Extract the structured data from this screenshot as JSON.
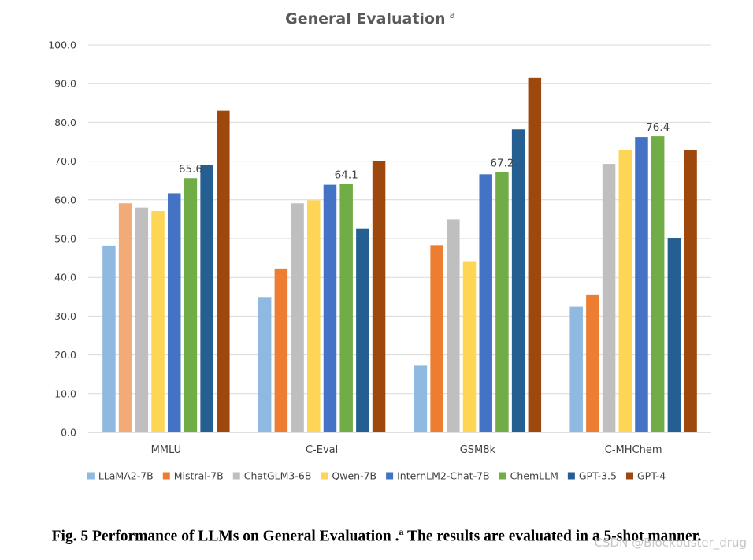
{
  "chart_data": {
    "type": "bar",
    "title": "General Evaluation",
    "title_superscript": "a",
    "categories": [
      "MMLU",
      "C-Eval",
      "GSM8k",
      "C-MHChem"
    ],
    "ylim": [
      0,
      100
    ],
    "yticks": [
      "0.0",
      "10.0",
      "20.0",
      "30.0",
      "40.0",
      "50.0",
      "60.0",
      "70.0",
      "80.0",
      "90.0",
      "100.0"
    ],
    "ytick_values": [
      0,
      10,
      20,
      30,
      40,
      50,
      60,
      70,
      80,
      90,
      100
    ],
    "grid": true,
    "legend_position": "bottom",
    "series": [
      {
        "name": "LLaMA2-7B",
        "color": "#8fb9e1",
        "values": [
          48.2,
          34.9,
          17.2,
          32.4
        ]
      },
      {
        "name": "Mistral-7B",
        "color": "#ed7d31",
        "values": [
          59.1,
          42.3,
          48.3,
          35.6
        ]
      },
      {
        "name": "ChatGLM3-6B",
        "color": "#bfbfbf",
        "values": [
          58.0,
          59.1,
          55.0,
          69.3
        ]
      },
      {
        "name": "Qwen-7B",
        "color": "#ffd555",
        "values": [
          57.1,
          59.9,
          44.0,
          72.8
        ]
      },
      {
        "name": "InternLM2-Chat-7B",
        "color": "#4472c4",
        "values": [
          61.7,
          63.9,
          66.6,
          76.2
        ]
      },
      {
        "name": "ChemLLM",
        "color": "#70ad47",
        "values": [
          65.6,
          64.1,
          67.2,
          76.4
        ]
      },
      {
        "name": "GPT-3.5",
        "color": "#255e91",
        "values": [
          69.1,
          52.5,
          78.2,
          50.2
        ]
      },
      {
        "name": "GPT-4",
        "color": "#9e480e",
        "values": [
          83.0,
          70.0,
          91.5,
          72.8
        ]
      }
    ],
    "bar_color_overrides": [
      {
        "series": 1,
        "category": 0,
        "color": "#f2aa77"
      }
    ],
    "data_labels": [
      {
        "series": 5,
        "category": 0,
        "text": "65.6"
      },
      {
        "series": 5,
        "category": 1,
        "text": "64.1"
      },
      {
        "series": 5,
        "category": 2,
        "text": "67.2"
      },
      {
        "series": 5,
        "category": 3,
        "text": "76.4"
      }
    ]
  },
  "caption": {
    "text": "Fig. 5 Performance of LLMs on General Evaluation .",
    "superscript": "a",
    "text_after": " The results are evaluated in a 5-shot manner."
  },
  "watermark": "CSDN @Blockbuster_drug",
  "colors": {
    "gridline": "#d9d9d9",
    "axis": "#bfbfbf",
    "text": "#404040"
  }
}
